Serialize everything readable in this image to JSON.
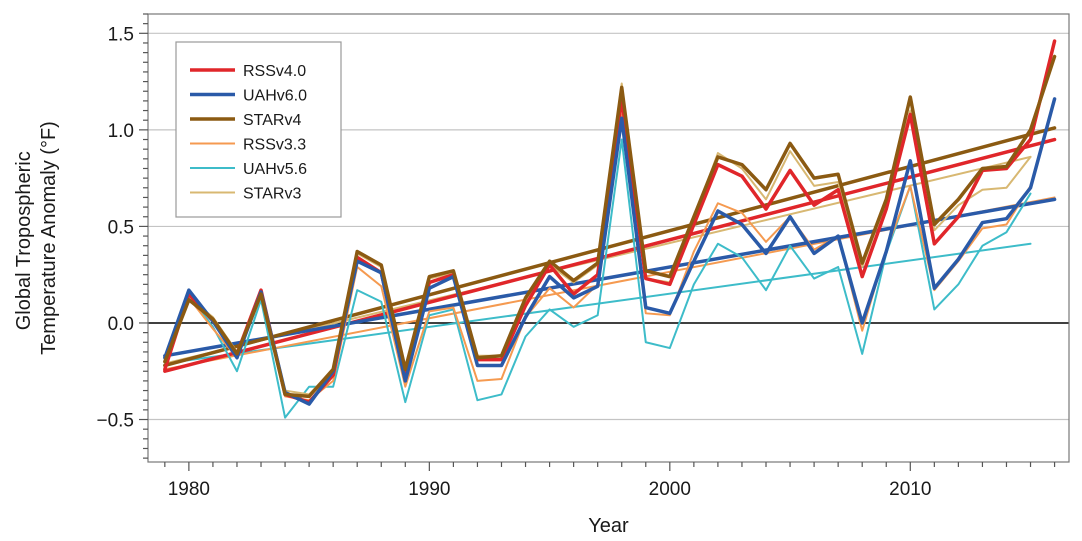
{
  "chart_data": {
    "type": "line",
    "xlabel": "Year",
    "ylabel": [
      "Global Tropospheric",
      "Temperature Anomaly (°F)"
    ],
    "xlim": [
      1978.3,
      2016.6
    ],
    "ylim": [
      -0.72,
      1.6
    ],
    "x_ticks": [
      1980,
      1990,
      2000,
      2010
    ],
    "x_tick_labels": [
      "1980",
      "1990",
      "2000",
      "2010"
    ],
    "y_ticks": [
      -0.5,
      0.0,
      0.5,
      1.0,
      1.5
    ],
    "y_tick_labels": [
      "−0.5",
      "0.0",
      "0.5",
      "1.0",
      "1.5"
    ],
    "grid": "horizontal",
    "zero_line": true,
    "legend_position": "upper-left",
    "years": [
      1979,
      1980,
      1981,
      1982,
      1983,
      1984,
      1985,
      1986,
      1987,
      1988,
      1989,
      1990,
      1991,
      1992,
      1993,
      1994,
      1995,
      1996,
      1997,
      1998,
      1999,
      2000,
      2001,
      2002,
      2003,
      2004,
      2005,
      2006,
      2007,
      2008,
      2009,
      2010,
      2011,
      2012,
      2013,
      2014,
      2015,
      2016
    ],
    "series": [
      {
        "name": "UAHv5.6",
        "color": "#3dbcc9",
        "width": 2,
        "x_end": 2015,
        "values": [
          -0.19,
          0.15,
          -0.02,
          -0.25,
          0.12,
          -0.49,
          -0.33,
          -0.33,
          0.17,
          0.11,
          -0.41,
          0.04,
          0.07,
          -0.4,
          -0.37,
          -0.07,
          0.07,
          -0.02,
          0.04,
          0.95,
          -0.1,
          -0.13,
          0.2,
          0.41,
          0.34,
          0.17,
          0.4,
          0.23,
          0.29,
          -0.16,
          0.36,
          0.71,
          0.07,
          0.2,
          0.4,
          0.47,
          0.67
        ],
        "trend": [
          -0.21,
          0.41
        ]
      },
      {
        "name": "RSSv3.3",
        "color": "#f59a50",
        "width": 2,
        "x_end": 2016,
        "values": [
          -0.24,
          0.13,
          -0.03,
          -0.18,
          0.14,
          -0.38,
          -0.4,
          -0.3,
          0.29,
          0.19,
          -0.33,
          0.06,
          0.08,
          -0.3,
          -0.29,
          0.03,
          0.18,
          0.08,
          0.2,
          1.08,
          0.05,
          0.04,
          0.37,
          0.62,
          0.57,
          0.42,
          0.55,
          0.38,
          0.45,
          -0.04,
          0.38,
          0.71,
          0.17,
          0.32,
          0.49,
          0.51,
          0.71,
          1.15
        ],
        "trend": [
          -0.24,
          0.65
        ]
      },
      {
        "name": "STARv3",
        "color": "#d8b872",
        "width": 2,
        "x_end": 2015,
        "values": [
          -0.2,
          0.13,
          0.03,
          -0.15,
          0.16,
          -0.35,
          -0.37,
          -0.24,
          0.36,
          0.29,
          -0.25,
          0.23,
          0.26,
          -0.17,
          -0.17,
          0.12,
          0.3,
          0.21,
          0.3,
          1.24,
          0.23,
          0.21,
          0.54,
          0.88,
          0.8,
          0.64,
          0.89,
          0.71,
          0.73,
          0.29,
          0.63,
          1.1,
          0.48,
          0.61,
          0.69,
          0.7,
          0.86
        ],
        "trend": [
          -0.21,
          0.86
        ]
      },
      {
        "name": "RSSv4.0",
        "color": "#e0262a",
        "width": 3.5,
        "x_end": 2016,
        "values": [
          -0.24,
          0.15,
          0.01,
          -0.16,
          0.17,
          -0.37,
          -0.41,
          -0.27,
          0.34,
          0.26,
          -0.28,
          0.21,
          0.25,
          -0.19,
          -0.19,
          0.09,
          0.3,
          0.15,
          0.25,
          1.16,
          0.23,
          0.2,
          0.51,
          0.82,
          0.76,
          0.59,
          0.79,
          0.61,
          0.69,
          0.24,
          0.59,
          1.08,
          0.41,
          0.55,
          0.79,
          0.8,
          0.95,
          1.46
        ],
        "trend": [
          -0.25,
          0.95
        ]
      },
      {
        "name": "UAHv6.0",
        "color": "#2a5aa8",
        "width": 3.5,
        "x_end": 2016,
        "values": [
          -0.18,
          0.17,
          0.01,
          -0.18,
          0.16,
          -0.36,
          -0.42,
          -0.25,
          0.32,
          0.26,
          -0.3,
          0.18,
          0.24,
          -0.22,
          -0.22,
          0.03,
          0.24,
          0.13,
          0.19,
          1.06,
          0.08,
          0.05,
          0.32,
          0.58,
          0.51,
          0.36,
          0.55,
          0.36,
          0.45,
          0.0,
          0.37,
          0.84,
          0.18,
          0.33,
          0.52,
          0.54,
          0.7,
          1.16
        ],
        "trend": [
          -0.17,
          0.64
        ]
      },
      {
        "name": "STARv4",
        "color": "#8b5a12",
        "width": 3.5,
        "x_end": 2016,
        "values": [
          -0.2,
          0.12,
          0.02,
          -0.16,
          0.15,
          -0.37,
          -0.38,
          -0.24,
          0.37,
          0.3,
          -0.24,
          0.24,
          0.27,
          -0.18,
          -0.17,
          0.13,
          0.32,
          0.22,
          0.31,
          1.22,
          0.27,
          0.24,
          0.55,
          0.86,
          0.82,
          0.69,
          0.93,
          0.75,
          0.77,
          0.31,
          0.64,
          1.17,
          0.51,
          0.64,
          0.8,
          0.81,
          1.0,
          1.38
        ],
        "trend": [
          -0.22,
          1.01
        ]
      }
    ],
    "legend": [
      {
        "name": "RSSv4.0",
        "color": "#e0262a",
        "width": 3.5
      },
      {
        "name": "UAHv6.0",
        "color": "#2a5aa8",
        "width": 3.5
      },
      {
        "name": "STARv4",
        "color": "#8b5a12",
        "width": 3.5
      },
      {
        "name": "RSSv3.3",
        "color": "#f59a50",
        "width": 2
      },
      {
        "name": "UAHv5.6",
        "color": "#3dbcc9",
        "width": 2
      },
      {
        "name": "STARv3",
        "color": "#d8b872",
        "width": 2
      }
    ]
  }
}
